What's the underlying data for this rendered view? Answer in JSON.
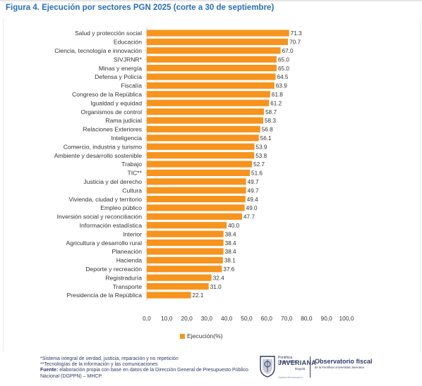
{
  "title": "Figura 4. Ejecución por sectores PGN 2025 (corte a 30 de septiembre)",
  "colors": {
    "bar": "#f7941d",
    "title": "#2a6fb5",
    "text": "#333333",
    "notes": "#2f3a66"
  },
  "chart_data": {
    "type": "bar",
    "orientation": "horizontal",
    "categories": [
      "Salud y protección social",
      "Educación",
      "Ciencia, tecnología e innovación",
      "SIVJRNR*",
      "Minas y energía",
      "Defensa y Policía",
      "Fiscalía",
      "Congreso de la República",
      "Igualdad y equidad",
      "Organismos de control",
      "Rama judicial",
      "Relaciones Exteriores",
      "Inteligencia",
      "Comercio, industria y turismo",
      "Ambiente y desarrollo sostenible",
      "Trabajo",
      "TIC**",
      "Justicia y del derecho",
      "Cultura",
      "Vivienda, ciudad y territorio",
      "Empleo público",
      "Inversión social y reconciliación",
      "Información estadística",
      "Interior",
      "Agricultura y desarrollo rural",
      "Planeación",
      "Hacienda",
      "Deporte y recreación",
      "Registraduría",
      "Transporte",
      "Presidencia de la República"
    ],
    "values": [
      71.3,
      70.7,
      67.0,
      65.0,
      65.0,
      64.5,
      63.9,
      61.8,
      61.2,
      58.7,
      58.3,
      56.8,
      56.1,
      53.9,
      53.8,
      52.7,
      51.6,
      49.7,
      49.7,
      49.4,
      49.0,
      47.7,
      40.0,
      38.4,
      38.4,
      38.4,
      38.1,
      37.6,
      32.4,
      31.0,
      22.1
    ],
    "value_labels": [
      "71.3",
      "70.7",
      "67.0",
      "65.0",
      "65.0",
      "64.5",
      "63.9",
      "61.8",
      "61.2",
      "58.7",
      "58.3",
      "56.8",
      "56.1",
      "53.9",
      "53.8",
      "52.7",
      "51.6",
      "49.7",
      "49.7",
      "49.4",
      "49.0",
      "47.7",
      "40.0",
      "38.4",
      "38.4",
      "38.4",
      "38.1",
      "37.6",
      "32.4",
      "31.0",
      "22.1"
    ],
    "x_ticks": [
      "0,0",
      "10,0",
      "20,0",
      "30,0",
      "40,0",
      "50,0",
      "60,0",
      "70,0",
      "80,0",
      "90,0",
      "100,0"
    ],
    "xlim": [
      0,
      100
    ],
    "grid": false,
    "legend": {
      "position": "bottom",
      "entries": [
        "Ejecución(%)"
      ]
    }
  },
  "notes": {
    "line1": "*Sistema integral de verdad, justicia, reparación y no repetición",
    "line2": "**Tecnologías de la información y las comunicaciones",
    "source_label": "Fuente:",
    "source_text": " elaboración propia con base en datos de la Dirección General de Presupuesto Público Nacional (DGPPN) – MHCP."
  },
  "logos": {
    "university_small": "Pontificia Universidad",
    "university_name": "JAVERIANA",
    "university_city": "Bogotá",
    "observatory_name": "Observatorio fiscal",
    "observatory_sub": "de la Pontificia Universidad Javeriana",
    "bottom_line": "Vigilada Mineducación"
  }
}
